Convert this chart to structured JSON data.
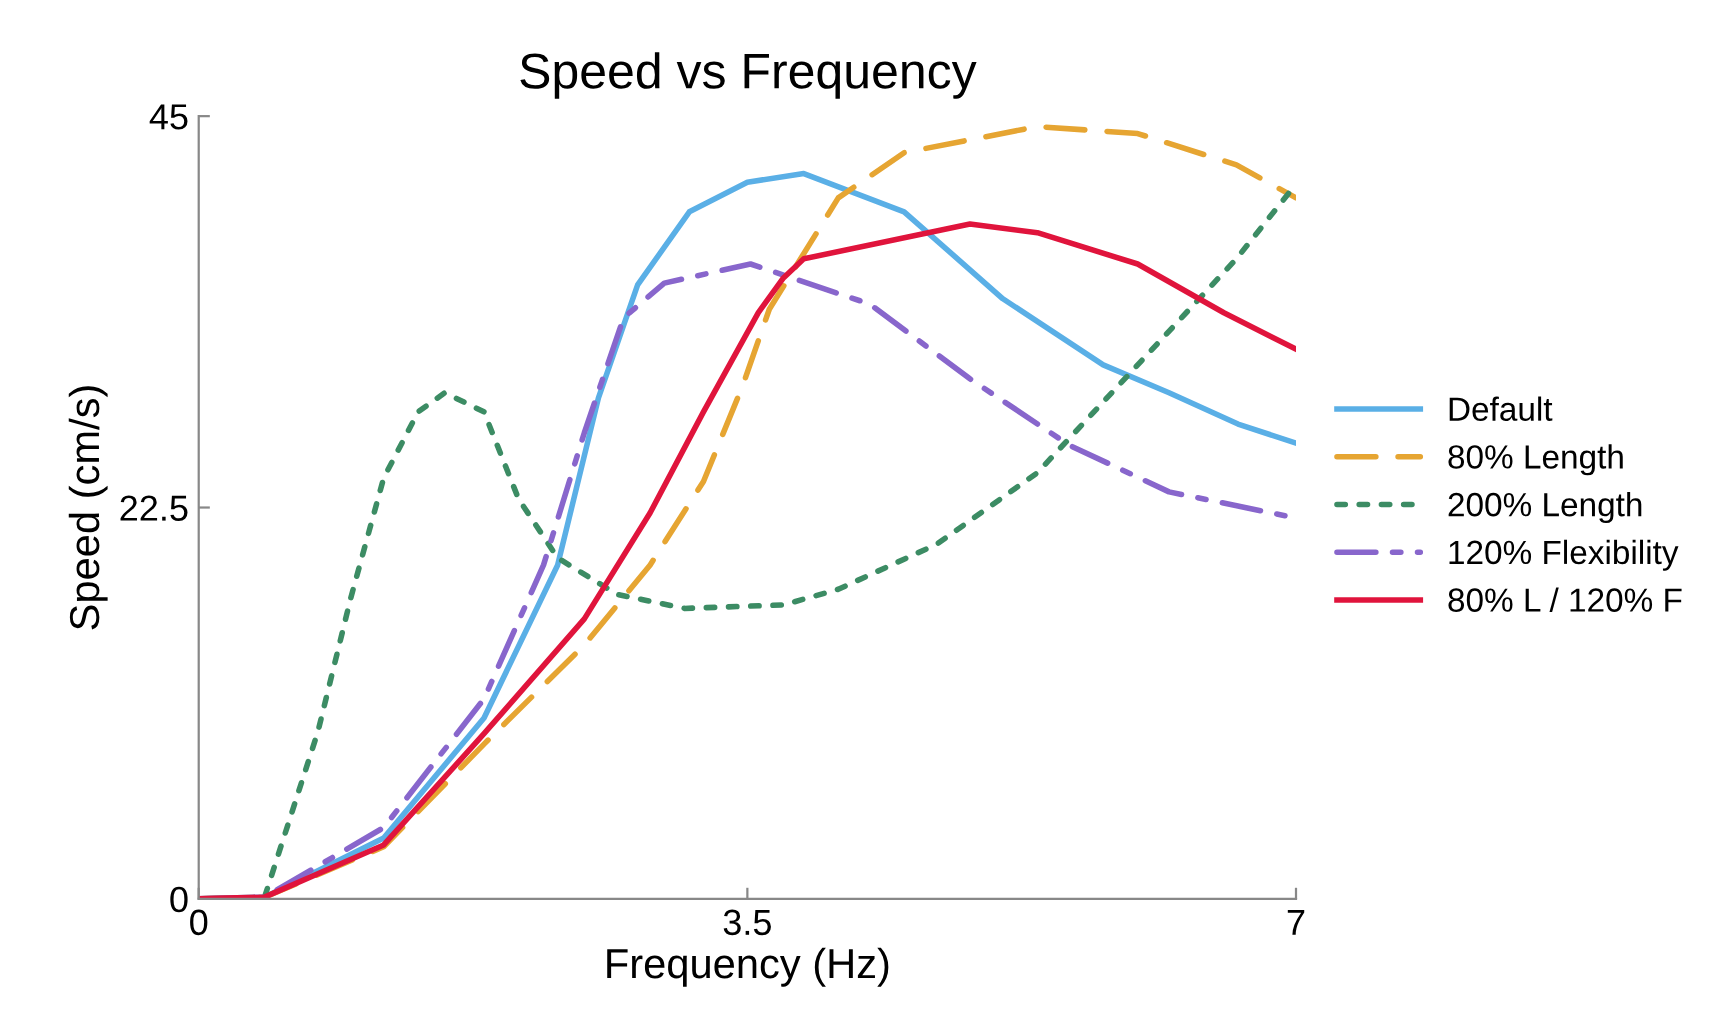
{
  "chart_data": {
    "type": "line",
    "title": "Speed vs Frequency",
    "xlabel": "Frequency (Hz)",
    "ylabel": "Speed (cm/s)",
    "xlim": [
      0,
      7
    ],
    "xticks": [
      0,
      3.5,
      7
    ],
    "ylim": [
      0,
      45
    ],
    "yticks": [
      0,
      22.5,
      45
    ],
    "grid": false,
    "legend": "right",
    "series": [
      {
        "name": "Default",
        "color": "#5aafe6",
        "line_style": "solid",
        "x": [
          0,
          0.42,
          1.18,
          1.82,
          2.29,
          2.55,
          2.8,
          3.13,
          3.5,
          3.86,
          4.5,
          5.13,
          5.77,
          6.19,
          6.63,
          7
        ],
        "values": [
          0,
          0.1,
          3.5,
          10.4,
          19.2,
          28.8,
          35.3,
          39.5,
          41.2,
          41.7,
          39.5,
          34.5,
          30.7,
          29.1,
          27.3,
          26.2
        ]
      },
      {
        "name": "80% Length",
        "color": "#e6a532",
        "line_style": "dashed",
        "x": [
          0,
          0.42,
          1.18,
          1.82,
          2.46,
          2.88,
          3.22,
          3.47,
          3.64,
          4.08,
          4.5,
          5.35,
          5.99,
          6.62,
          7
        ],
        "values": [
          0,
          0.1,
          3.0,
          8.9,
          14.6,
          19.2,
          24,
          29.5,
          33.9,
          40.3,
          42.9,
          44.4,
          44,
          42.2,
          40.3
        ]
      },
      {
        "name": "200% Length",
        "color": "#3c8c64",
        "line_style": "dotted",
        "x": [
          0,
          0.29,
          0.42,
          0.76,
          0.97,
          1.18,
          1.4,
          1.57,
          1.82,
          2.04,
          2.29,
          2.67,
          3.1,
          3.73,
          4.08,
          4.71,
          5.35,
          5.99,
          6.62,
          7
        ],
        "values": [
          0,
          0,
          0.1,
          9.6,
          17.3,
          24.2,
          28,
          29.1,
          28,
          23,
          19.6,
          17.5,
          16.7,
          16.9,
          17.8,
          20.4,
          24.5,
          30.7,
          36.8,
          41.1
        ]
      },
      {
        "name": "120% Flexibility",
        "color": "#8866cc",
        "line_style": "dashdot",
        "x": [
          0,
          0.42,
          1.18,
          1.82,
          2.2,
          2.46,
          2.71,
          2.97,
          3.52,
          4.28,
          4.92,
          5.55,
          6.19,
          7
        ],
        "values": [
          0,
          0.1,
          4.1,
          11.5,
          19.2,
          26.8,
          33.4,
          35.4,
          36.5,
          34.2,
          29.9,
          26.1,
          23.4,
          21.9
        ]
      },
      {
        "name": "80% L / 120% F",
        "color": "#e0143c",
        "line_style": "solid",
        "x": [
          0,
          0.42,
          1.18,
          1.82,
          2.46,
          2.88,
          3.22,
          3.57,
          3.73,
          3.86,
          4.92,
          5.35,
          5.99,
          6.54,
          7
        ],
        "values": [
          0,
          0.1,
          3.1,
          9.5,
          16.1,
          22.2,
          28,
          33.7,
          35.7,
          36.8,
          38.8,
          38.3,
          36.5,
          33.7,
          31.6
        ]
      }
    ]
  }
}
